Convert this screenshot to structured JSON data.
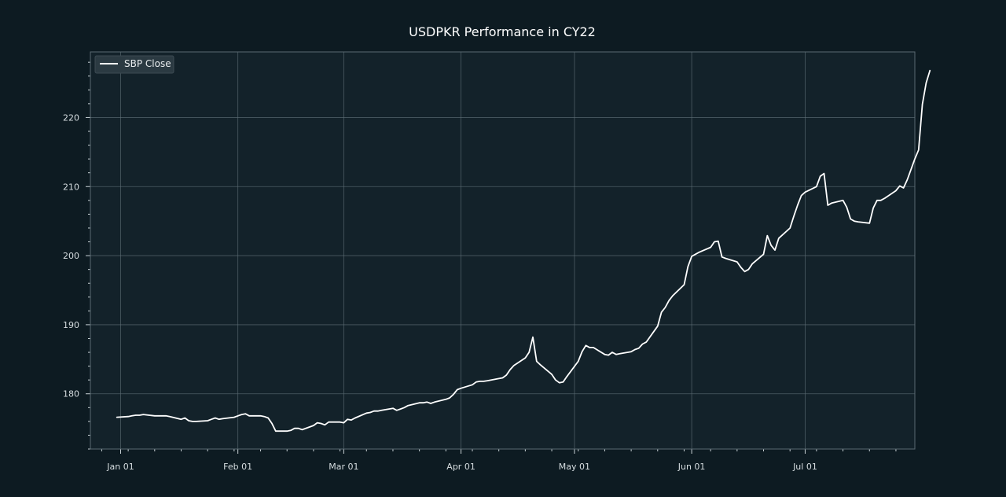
{
  "chart_data": {
    "type": "line",
    "title": "USDPKR Performance in CY22",
    "xlabel": "",
    "ylabel": "",
    "x_range": [
      "2021-12-24",
      "2022-07-30"
    ],
    "ylim": [
      172,
      229.5
    ],
    "x_ticks": [
      {
        "date": "2022-01-01",
        "label": "Jan 01"
      },
      {
        "date": "2022-02-01",
        "label": "Feb 01"
      },
      {
        "date": "2022-03-01",
        "label": "Mar 01"
      },
      {
        "date": "2022-04-01",
        "label": "Apr 01"
      },
      {
        "date": "2022-05-01",
        "label": "May 01"
      },
      {
        "date": "2022-06-01",
        "label": "Jun 01"
      },
      {
        "date": "2022-07-01",
        "label": "Jul 01"
      }
    ],
    "y_ticks": [
      180,
      190,
      200,
      210,
      220
    ],
    "grid": true,
    "legend_position": "top-left",
    "colors": {
      "background": "#0d1b22",
      "plot_background": "#13222a",
      "line": "#ffffff",
      "grid": "#5f6f77",
      "legend_background": "#2b3a42"
    },
    "series": [
      {
        "name": "SBP Close",
        "points": [
          [
            "2021-12-31",
            176.6
          ],
          [
            "2022-01-03",
            176.7
          ],
          [
            "2022-01-04",
            176.8
          ],
          [
            "2022-01-05",
            176.9
          ],
          [
            "2022-01-06",
            176.9
          ],
          [
            "2022-01-07",
            177.0
          ],
          [
            "2022-01-10",
            176.8
          ],
          [
            "2022-01-11",
            176.8
          ],
          [
            "2022-01-12",
            176.8
          ],
          [
            "2022-01-13",
            176.8
          ],
          [
            "2022-01-14",
            176.7
          ],
          [
            "2022-01-17",
            176.3
          ],
          [
            "2022-01-18",
            176.5
          ],
          [
            "2022-01-19",
            176.1
          ],
          [
            "2022-01-20",
            176.0
          ],
          [
            "2022-01-21",
            176.0
          ],
          [
            "2022-01-24",
            176.1
          ],
          [
            "2022-01-25",
            176.3
          ],
          [
            "2022-01-26",
            176.5
          ],
          [
            "2022-01-27",
            176.3
          ],
          [
            "2022-01-28",
            176.4
          ],
          [
            "2022-01-31",
            176.6
          ],
          [
            "2022-02-01",
            176.8
          ],
          [
            "2022-02-02",
            177.0
          ],
          [
            "2022-02-03",
            177.1
          ],
          [
            "2022-02-04",
            176.8
          ],
          [
            "2022-02-07",
            176.8
          ],
          [
            "2022-02-08",
            176.7
          ],
          [
            "2022-02-09",
            176.5
          ],
          [
            "2022-02-10",
            175.7
          ],
          [
            "2022-02-11",
            174.6
          ],
          [
            "2022-02-14",
            174.6
          ],
          [
            "2022-02-15",
            174.7
          ],
          [
            "2022-02-16",
            175.0
          ],
          [
            "2022-02-17",
            175.0
          ],
          [
            "2022-02-18",
            174.8
          ],
          [
            "2022-02-21",
            175.4
          ],
          [
            "2022-02-22",
            175.8
          ],
          [
            "2022-02-23",
            175.7
          ],
          [
            "2022-02-24",
            175.5
          ],
          [
            "2022-02-25",
            175.9
          ],
          [
            "2022-02-28",
            175.9
          ],
          [
            "2022-03-01",
            175.8
          ],
          [
            "2022-03-02",
            176.3
          ],
          [
            "2022-03-03",
            176.2
          ],
          [
            "2022-03-04",
            176.5
          ],
          [
            "2022-03-07",
            177.2
          ],
          [
            "2022-03-08",
            177.3
          ],
          [
            "2022-03-09",
            177.5
          ],
          [
            "2022-03-10",
            177.5
          ],
          [
            "2022-03-11",
            177.6
          ],
          [
            "2022-03-14",
            177.9
          ],
          [
            "2022-03-15",
            177.6
          ],
          [
            "2022-03-16",
            177.8
          ],
          [
            "2022-03-17",
            178.0
          ],
          [
            "2022-03-18",
            178.3
          ],
          [
            "2022-03-21",
            178.7
          ],
          [
            "2022-03-22",
            178.7
          ],
          [
            "2022-03-23",
            178.8
          ],
          [
            "2022-03-24",
            178.6
          ],
          [
            "2022-03-25",
            178.8
          ],
          [
            "2022-03-28",
            179.2
          ],
          [
            "2022-03-29",
            179.4
          ],
          [
            "2022-03-30",
            179.9
          ],
          [
            "2022-03-31",
            180.6
          ],
          [
            "2022-04-01",
            180.8
          ],
          [
            "2022-04-04",
            181.3
          ],
          [
            "2022-04-05",
            181.7
          ],
          [
            "2022-04-06",
            181.8
          ],
          [
            "2022-04-07",
            181.8
          ],
          [
            "2022-04-08",
            181.9
          ],
          [
            "2022-04-11",
            182.2
          ],
          [
            "2022-04-12",
            182.3
          ],
          [
            "2022-04-13",
            182.7
          ],
          [
            "2022-04-14",
            183.5
          ],
          [
            "2022-04-15",
            184.1
          ],
          [
            "2022-04-18",
            185.2
          ],
          [
            "2022-04-19",
            186.0
          ],
          [
            "2022-04-20",
            188.2
          ],
          [
            "2022-04-21",
            184.7
          ],
          [
            "2022-04-22",
            184.2
          ],
          [
            "2022-04-25",
            182.8
          ],
          [
            "2022-04-26",
            182.0
          ],
          [
            "2022-04-27",
            181.6
          ],
          [
            "2022-04-28",
            181.7
          ],
          [
            "2022-04-29",
            182.5
          ],
          [
            "2022-05-02",
            184.7
          ],
          [
            "2022-05-03",
            186.1
          ],
          [
            "2022-05-04",
            187.0
          ],
          [
            "2022-05-05",
            186.7
          ],
          [
            "2022-05-06",
            186.7
          ],
          [
            "2022-05-09",
            185.7
          ],
          [
            "2022-05-10",
            185.6
          ],
          [
            "2022-05-11",
            186.0
          ],
          [
            "2022-05-12",
            185.7
          ],
          [
            "2022-05-13",
            185.8
          ],
          [
            "2022-05-16",
            186.1
          ],
          [
            "2022-05-17",
            186.4
          ],
          [
            "2022-05-18",
            186.6
          ],
          [
            "2022-05-19",
            187.2
          ],
          [
            "2022-05-20",
            187.5
          ],
          [
            "2022-05-23",
            189.8
          ],
          [
            "2022-05-24",
            191.8
          ],
          [
            "2022-05-25",
            192.5
          ],
          [
            "2022-05-26",
            193.5
          ],
          [
            "2022-05-27",
            194.2
          ],
          [
            "2022-05-30",
            195.8
          ],
          [
            "2022-05-31",
            198.4
          ],
          [
            "2022-06-01",
            199.9
          ],
          [
            "2022-06-02",
            200.2
          ],
          [
            "2022-06-03",
            200.5
          ],
          [
            "2022-06-06",
            201.2
          ],
          [
            "2022-06-07",
            202.0
          ],
          [
            "2022-06-08",
            202.1
          ],
          [
            "2022-06-09",
            199.8
          ],
          [
            "2022-06-10",
            199.6
          ],
          [
            "2022-06-13",
            199.1
          ],
          [
            "2022-06-14",
            198.3
          ],
          [
            "2022-06-15",
            197.7
          ],
          [
            "2022-06-16",
            198.0
          ],
          [
            "2022-06-17",
            198.8
          ],
          [
            "2022-06-20",
            200.2
          ],
          [
            "2022-06-21",
            202.9
          ],
          [
            "2022-06-22",
            201.5
          ],
          [
            "2022-06-23",
            200.8
          ],
          [
            "2022-06-24",
            202.5
          ],
          [
            "2022-06-27",
            204.0
          ],
          [
            "2022-06-28",
            205.7
          ],
          [
            "2022-06-29",
            207.3
          ],
          [
            "2022-06-30",
            208.7
          ],
          [
            "2022-07-01",
            209.2
          ],
          [
            "2022-07-04",
            210.0
          ],
          [
            "2022-07-05",
            211.5
          ],
          [
            "2022-07-06",
            211.9
          ],
          [
            "2022-07-07",
            207.3
          ],
          [
            "2022-07-08",
            207.6
          ],
          [
            "2022-07-11",
            208.0
          ],
          [
            "2022-07-12",
            207.0
          ],
          [
            "2022-07-13",
            205.3
          ],
          [
            "2022-07-14",
            205.0
          ],
          [
            "2022-07-15",
            204.9
          ],
          [
            "2022-07-18",
            204.7
          ],
          [
            "2022-07-19",
            206.9
          ],
          [
            "2022-07-20",
            208.0
          ],
          [
            "2022-07-21",
            208.0
          ],
          [
            "2022-07-22",
            208.3
          ],
          [
            "2022-07-25",
            209.4
          ],
          [
            "2022-07-26",
            210.1
          ],
          [
            "2022-07-27",
            209.8
          ],
          [
            "2022-07-28",
            211.0
          ],
          [
            "2022-07-29",
            212.5
          ],
          [
            "2022-07-30",
            214.0
          ],
          [
            "2022-07-31",
            215.3
          ],
          [
            "2022-08-01",
            221.9
          ],
          [
            "2022-08-02",
            225.0
          ],
          [
            "2022-08-03",
            226.8
          ]
        ]
      }
    ]
  }
}
